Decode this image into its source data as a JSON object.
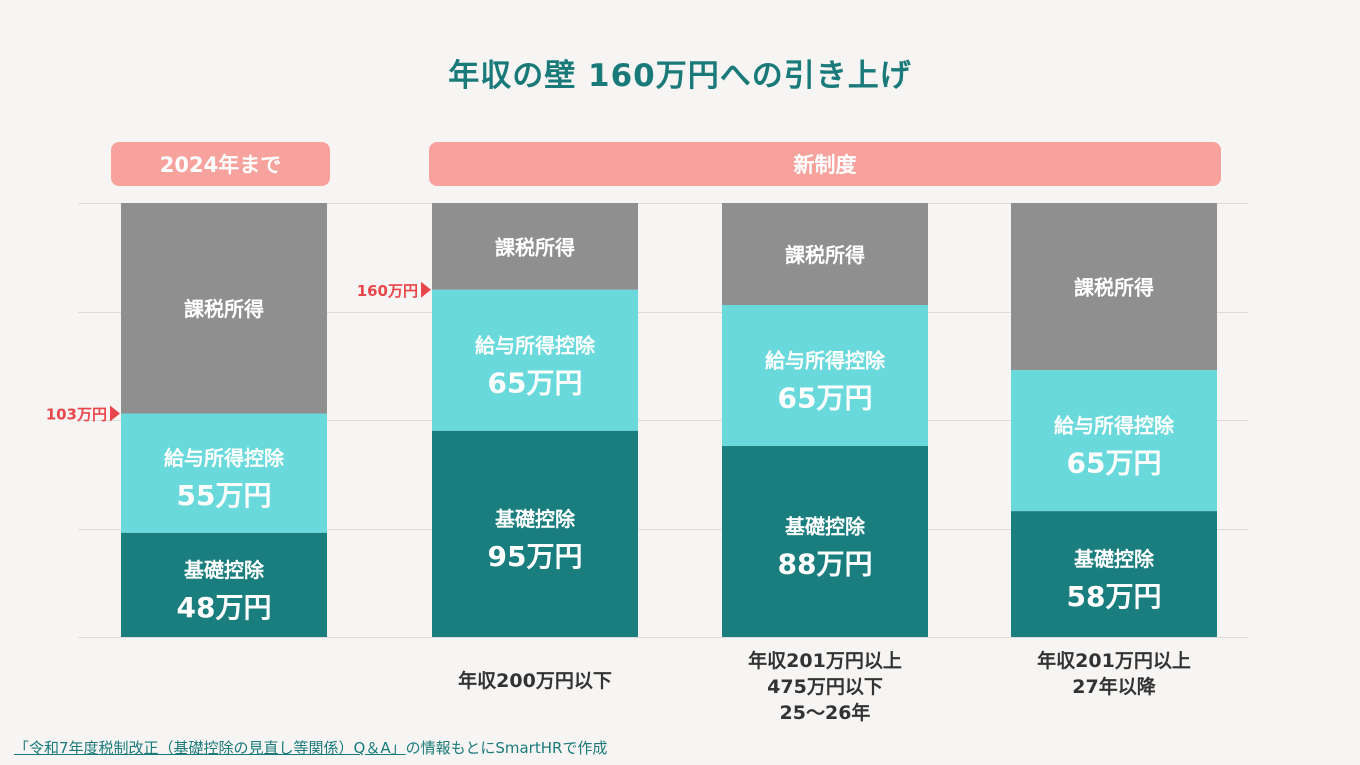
{
  "title": "年収の壁 160万円への引き上げ",
  "groups": [
    {
      "label": "2024年まで"
    },
    {
      "label": "新制度"
    }
  ],
  "colors": {
    "kazei": "#8f8f8f",
    "kyuyo": "#6ad9db",
    "kiso": "#1a7d7e",
    "header": "#f7a29c",
    "marker": "#e8464b",
    "title": "#1a7a7a"
  },
  "chart_data": {
    "type": "bar",
    "stacked": true,
    "title": "年収の壁 160万円への引き上げ",
    "categories": [
      "",
      "年収200万円以下",
      "年収201万円以上\n475万円以下\n25〜26年",
      "年収201万円以上\n27年以降"
    ],
    "series": [
      {
        "name": "基礎控除",
        "values": [
          48,
          95,
          88,
          58
        ],
        "labels": [
          "48万円",
          "95万円",
          "88万円",
          "58万円"
        ]
      },
      {
        "name": "給与所得控除",
        "values": [
          55,
          65,
          65,
          65
        ],
        "labels": [
          "55万円",
          "65万円",
          "65万円",
          "65万円"
        ]
      },
      {
        "name": "課税所得",
        "values": [
          null,
          null,
          null,
          null
        ]
      }
    ],
    "ylim": [
      0,
      200
    ],
    "markers": [
      {
        "category_index": 0,
        "value": 103,
        "label": "103万円"
      },
      {
        "category_index": 1,
        "value": 160,
        "label": "160万円"
      }
    ],
    "grid": true
  },
  "bars": [
    {
      "category": "",
      "kazei": "課税所得",
      "kyuyo": "給与所得控除",
      "kyuyo_value": "55万円",
      "kiso": "基礎控除",
      "kiso_value": "48万円"
    },
    {
      "category": "年収200万円以下",
      "kazei": "課税所得",
      "kyuyo": "給与所得控除",
      "kyuyo_value": "65万円",
      "kiso": "基礎控除",
      "kiso_value": "95万円"
    },
    {
      "category": "年収201万円以上|475万円以下|25〜26年",
      "kazei": "課税所得",
      "kyuyo": "給与所得控除",
      "kyuyo_value": "65万円",
      "kiso": "基礎控除",
      "kiso_value": "88万円"
    },
    {
      "category": "年収201万円以上|27年以降",
      "kazei": "課税所得",
      "kyuyo": "給与所得控除",
      "kyuyo_value": "65万円",
      "kiso": "基礎控除",
      "kiso_value": "58万円"
    }
  ],
  "footer": {
    "link_text": "「令和7年度税制改正（基礎控除の見直し等関係）Q＆A」",
    "rest_text": "の情報もとにSmartHRで作成"
  }
}
